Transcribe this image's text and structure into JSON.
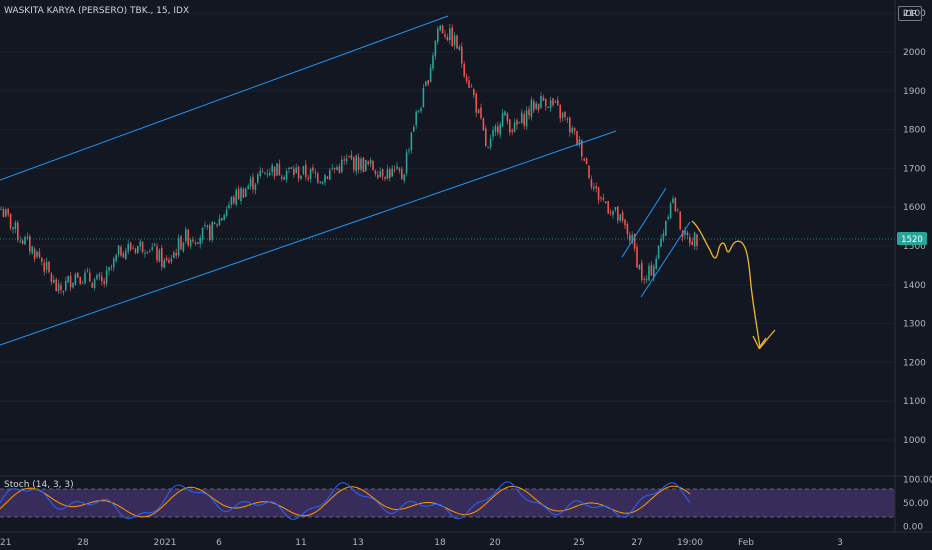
{
  "header": {
    "title": "WASKITA KARYA (PERSERO) TBK., 15, IDX",
    "currency": "IDR"
  },
  "colors": {
    "background": "#131722",
    "up": "#26a69a",
    "down": "#ef5350",
    "trendline": "#2196f3",
    "sketch": "#f0b429",
    "price_line": "#26a69a",
    "stoch_k": "#2962ff",
    "stoch_d": "#ff9800",
    "stoch_band": "#7e57c2"
  },
  "chart_data": [
    {
      "type": "candlestick",
      "y_ticks": [
        "2100",
        "2000",
        "1900",
        "1800",
        "1700",
        "1600",
        "1500",
        "1400",
        "1300",
        "1200",
        "1100",
        "1000"
      ],
      "ylim": [
        950,
        2110
      ],
      "x_ticks": [
        "21",
        "28",
        "2021",
        "6",
        "11",
        "13",
        "18",
        "20",
        "25",
        "27",
        "19:00",
        "Feb",
        "3"
      ],
      "last_price": "1520",
      "path": [
        [
          0,
          1600
        ],
        [
          0.02,
          1530
        ],
        [
          0.045,
          1470
        ],
        [
          0.065,
          1380
        ],
        [
          0.085,
          1430
        ],
        [
          0.115,
          1400
        ],
        [
          0.135,
          1490
        ],
        [
          0.165,
          1505
        ],
        [
          0.185,
          1450
        ],
        [
          0.205,
          1520
        ],
        [
          0.235,
          1535
        ],
        [
          0.26,
          1620
        ],
        [
          0.3,
          1700
        ],
        [
          0.33,
          1690
        ],
        [
          0.36,
          1680
        ],
        [
          0.39,
          1720
        ],
        [
          0.42,
          1700
        ],
        [
          0.45,
          1680
        ],
        [
          0.46,
          1800
        ],
        [
          0.475,
          1900
        ],
        [
          0.49,
          2070
        ],
        [
          0.51,
          2020
        ],
        [
          0.53,
          1880
        ],
        [
          0.545,
          1740
        ],
        [
          0.56,
          1840
        ],
        [
          0.575,
          1800
        ],
        [
          0.595,
          1860
        ],
        [
          0.61,
          1880
        ],
        [
          0.63,
          1830
        ],
        [
          0.65,
          1750
        ],
        [
          0.665,
          1640
        ],
        [
          0.685,
          1590
        ],
        [
          0.705,
          1520
        ],
        [
          0.72,
          1400
        ],
        [
          0.735,
          1480
        ],
        [
          0.75,
          1630
        ],
        [
          0.765,
          1520
        ],
        [
          0.78,
          1520
        ]
      ]
    },
    {
      "type": "line",
      "name": "Stoch (14, 3, 3)",
      "y_ticks": [
        "100.00",
        "50.00",
        "0.00"
      ],
      "ylim": [
        0,
        100
      ],
      "upper_band": 80,
      "lower_band": 20
    }
  ]
}
